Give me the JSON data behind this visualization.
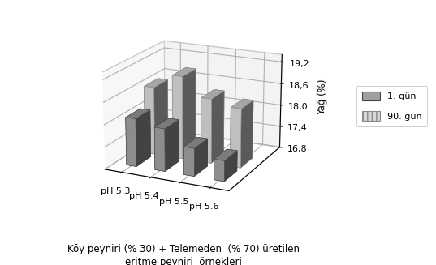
{
  "categories": [
    "pH 5.3",
    "pH 5.4",
    "pH 5.5",
    "pH 5.6"
  ],
  "series": {
    "1. gun": [
      18.1,
      17.95,
      17.55,
      17.35
    ],
    "90. gun": [
      18.65,
      19.05,
      18.55,
      18.4
    ]
  },
  "ylim": [
    16.8,
    19.4
  ],
  "yticks": [
    16.8,
    17.4,
    18.0,
    18.6,
    19.2
  ],
  "ylabel": "Yağ (%)",
  "xlabel_line1": "Köy peyniri (% 30) + Telemeden  (% 70) üretilen",
  "xlabel_line2": "eritme peyniri  örnekleri",
  "legend_labels": [
    "1. gün",
    "90. gün"
  ],
  "colors_face_1": "#a0a0a0",
  "colors_face_2": "#d8d8d8",
  "colors_edge_1": "#444444",
  "colors_edge_2": "#888888",
  "background_color": "#ffffff",
  "fontsize": 8.5
}
